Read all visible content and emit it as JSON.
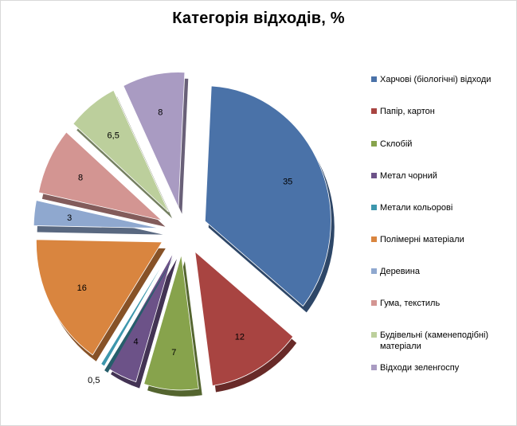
{
  "chart_data": {
    "type": "pie",
    "title": "Категорія відходів, %",
    "legend_position": "right",
    "exploded": true,
    "three_d": true,
    "categories": [
      "Харчові (біологічні) відходи",
      "Папір, картон",
      "Склобій",
      "Метал чорний",
      "Метали кольорові",
      "Полімерні матеріали",
      "Деревина",
      "Гума, текстиль",
      "Будівельні (каменеподібні) матеріали",
      "Відходи зеленгоспу"
    ],
    "values": [
      35,
      12,
      7,
      4,
      0.5,
      16,
      3,
      8,
      6.5,
      8
    ],
    "value_labels": [
      "35",
      "12",
      "7",
      "4",
      "0,5",
      "16",
      "3",
      "8",
      "6,5",
      "8"
    ],
    "colors": [
      "#4a72a8",
      "#a84441",
      "#87a34c",
      "#6c5288",
      "#3d97ad",
      "#d9853f",
      "#8fa8cf",
      "#d39592",
      "#bccf9c",
      "#a99bc2"
    ]
  }
}
